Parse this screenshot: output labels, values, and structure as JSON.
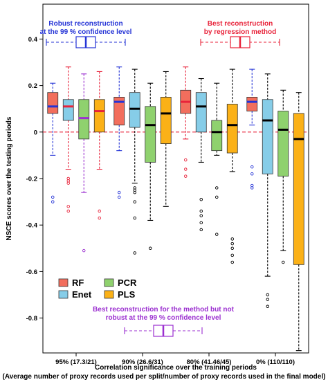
{
  "chart_data": {
    "type": "boxplot",
    "title": "",
    "ylabel": "NSCE scores over the testing periods",
    "xlabel": "Correlation significance over the training periods",
    "xlabel2": "(Average number of proxy records used per split/number of proxy records used in the final model)",
    "ylim": [
      -0.95,
      0.55
    ],
    "yticks": [
      -0.8,
      -0.6,
      -0.4,
      -0.2,
      0,
      0.2,
      0.4
    ],
    "reference_line": 0,
    "groups": [
      "95% (17.3/21)",
      "90% (26.6/31)",
      "80% (41.46/45)",
      "0% (110/110)"
    ],
    "series": [
      {
        "name": "RF",
        "color": "#f26e5d"
      },
      {
        "name": "Enet",
        "color": "#86cde8"
      },
      {
        "name": "PCR",
        "color": "#8fd16e"
      },
      {
        "name": "PLS",
        "color": "#fbb117"
      }
    ],
    "boxes": [
      [
        {
          "whislo": -0.1,
          "q1": 0.08,
          "med": 0.11,
          "q3": 0.17,
          "whishi": 0.21,
          "fliers": [
            -0.28,
            -0.3
          ],
          "median_color": "#2433d6",
          "whisker_color": "#2433d6",
          "flier_color": "#2433d6"
        },
        {
          "whislo": -0.16,
          "q1": 0.05,
          "med": 0.11,
          "q3": 0.14,
          "whishi": 0.28,
          "fliers": [
            -0.2,
            -0.21,
            -0.22,
            -0.32,
            -0.34
          ],
          "median_color": "#e8233a",
          "whisker_color": "#e8233a",
          "flier_color": "#e8233a"
        },
        {
          "whislo": -0.26,
          "q1": -0.03,
          "med": 0.06,
          "q3": 0.14,
          "whishi": 0.25,
          "fliers": [
            -0.51
          ],
          "median_color": "#9b2fd0",
          "whisker_color": "#9b2fd0",
          "flier_color": "#9b2fd0"
        },
        {
          "whislo": -0.16,
          "q1": 0.0,
          "med": 0.09,
          "q3": 0.14,
          "whishi": 0.26,
          "fliers": [
            -0.34,
            -0.37
          ],
          "median_color": "#e8233a",
          "whisker_color": "#e8233a",
          "flier_color": "#e8233a"
        }
      ],
      [
        {
          "whislo": -0.08,
          "q1": 0.03,
          "med": 0.13,
          "q3": 0.15,
          "whishi": 0.28,
          "fliers": [
            -0.26,
            -0.28
          ],
          "median_color": "#2433d6",
          "whisker_color": "#2433d6",
          "flier_color": "#2433d6"
        },
        {
          "whislo": -0.22,
          "q1": 0.02,
          "med": 0.1,
          "q3": 0.17,
          "whishi": 0.27,
          "fliers": [
            -0.24,
            -0.25,
            -0.26,
            -0.3,
            -0.37,
            -0.52
          ],
          "median_color": "#000000",
          "whisker_color": "#000000",
          "flier_color": "#000000"
        },
        {
          "whislo": -0.38,
          "q1": -0.13,
          "med": 0.03,
          "q3": 0.11,
          "whishi": 0.21,
          "fliers": [
            -0.5
          ],
          "median_color": "#000000",
          "whisker_color": "#000000",
          "flier_color": "#000000"
        },
        {
          "whislo": -0.32,
          "q1": -0.05,
          "med": 0.08,
          "q3": 0.15,
          "whishi": 0.26,
          "fliers": [],
          "median_color": "#000000",
          "whisker_color": "#000000",
          "flier_color": "#000000"
        }
      ],
      [
        {
          "whislo": -0.03,
          "q1": 0.08,
          "med": 0.13,
          "q3": 0.18,
          "whishi": 0.28,
          "fliers": [
            -0.12,
            -0.16,
            -0.19
          ],
          "median_color": "#e8233a",
          "whisker_color": "#e8233a",
          "flier_color": "#e8233a"
        },
        {
          "whislo": -0.13,
          "q1": 0.0,
          "med": 0.11,
          "q3": 0.17,
          "whishi": 0.23,
          "fliers": [
            -0.29,
            -0.34,
            -0.36,
            -0.39,
            -0.42
          ],
          "median_color": "#000000",
          "whisker_color": "#000000",
          "flier_color": "#000000"
        },
        {
          "whislo": -0.1,
          "q1": -0.08,
          "med": 0.0,
          "q3": 0.05,
          "whishi": 0.21,
          "fliers": [
            -0.24,
            -0.28,
            -0.44
          ],
          "median_color": "#000000",
          "whisker_color": "#000000",
          "flier_color": "#000000"
        },
        {
          "whislo": -0.17,
          "q1": -0.09,
          "med": 0.03,
          "q3": 0.12,
          "whishi": 0.27,
          "fliers": [
            -0.46,
            -0.48,
            -0.5,
            -0.53,
            -0.56
          ],
          "median_color": "#000000",
          "whisker_color": "#000000",
          "flier_color": "#000000"
        }
      ],
      [
        {
          "whislo": 0.03,
          "q1": 0.09,
          "med": 0.13,
          "q3": 0.15,
          "whishi": 0.27,
          "fliers": [
            -0.15,
            -0.18,
            -0.23,
            -0.24
          ],
          "median_color": "#2433d6",
          "whisker_color": "#2433d6",
          "flier_color": "#2433d6"
        },
        {
          "whislo": -0.62,
          "q1": -0.18,
          "med": 0.05,
          "q3": 0.14,
          "whishi": 0.25,
          "fliers": [
            -0.7,
            -0.72,
            -0.75
          ],
          "median_color": "#000000",
          "whisker_color": "#000000",
          "flier_color": "#000000"
        },
        {
          "whislo": -0.51,
          "q1": -0.19,
          "med": 0.01,
          "q3": 0.09,
          "whishi": 0.18,
          "fliers": [
            -0.56
          ],
          "median_color": "#000000",
          "whisker_color": "#000000",
          "flier_color": "#000000"
        },
        {
          "whislo": -0.94,
          "q1": -0.57,
          "med": -0.03,
          "q3": 0.08,
          "whishi": 0.17,
          "fliers": [],
          "median_color": "#000000",
          "whisker_color": "#000000",
          "flier_color": "#000000"
        }
      ]
    ],
    "annotations": {
      "robust": {
        "line1": "Robust reconstruction",
        "line2": "at the 99 % confidence level",
        "color": "#2433d6"
      },
      "best": {
        "line1": "Best reconstruction",
        "line2": "by regression method",
        "color": "#e8233a"
      },
      "best_not_robust": {
        "line1": "Best reconstruction for the method but not",
        "line2": "robust at the 99 % confidence level",
        "color": "#9b2fd0"
      }
    },
    "legend_placement": "lower-left",
    "grid": false
  }
}
